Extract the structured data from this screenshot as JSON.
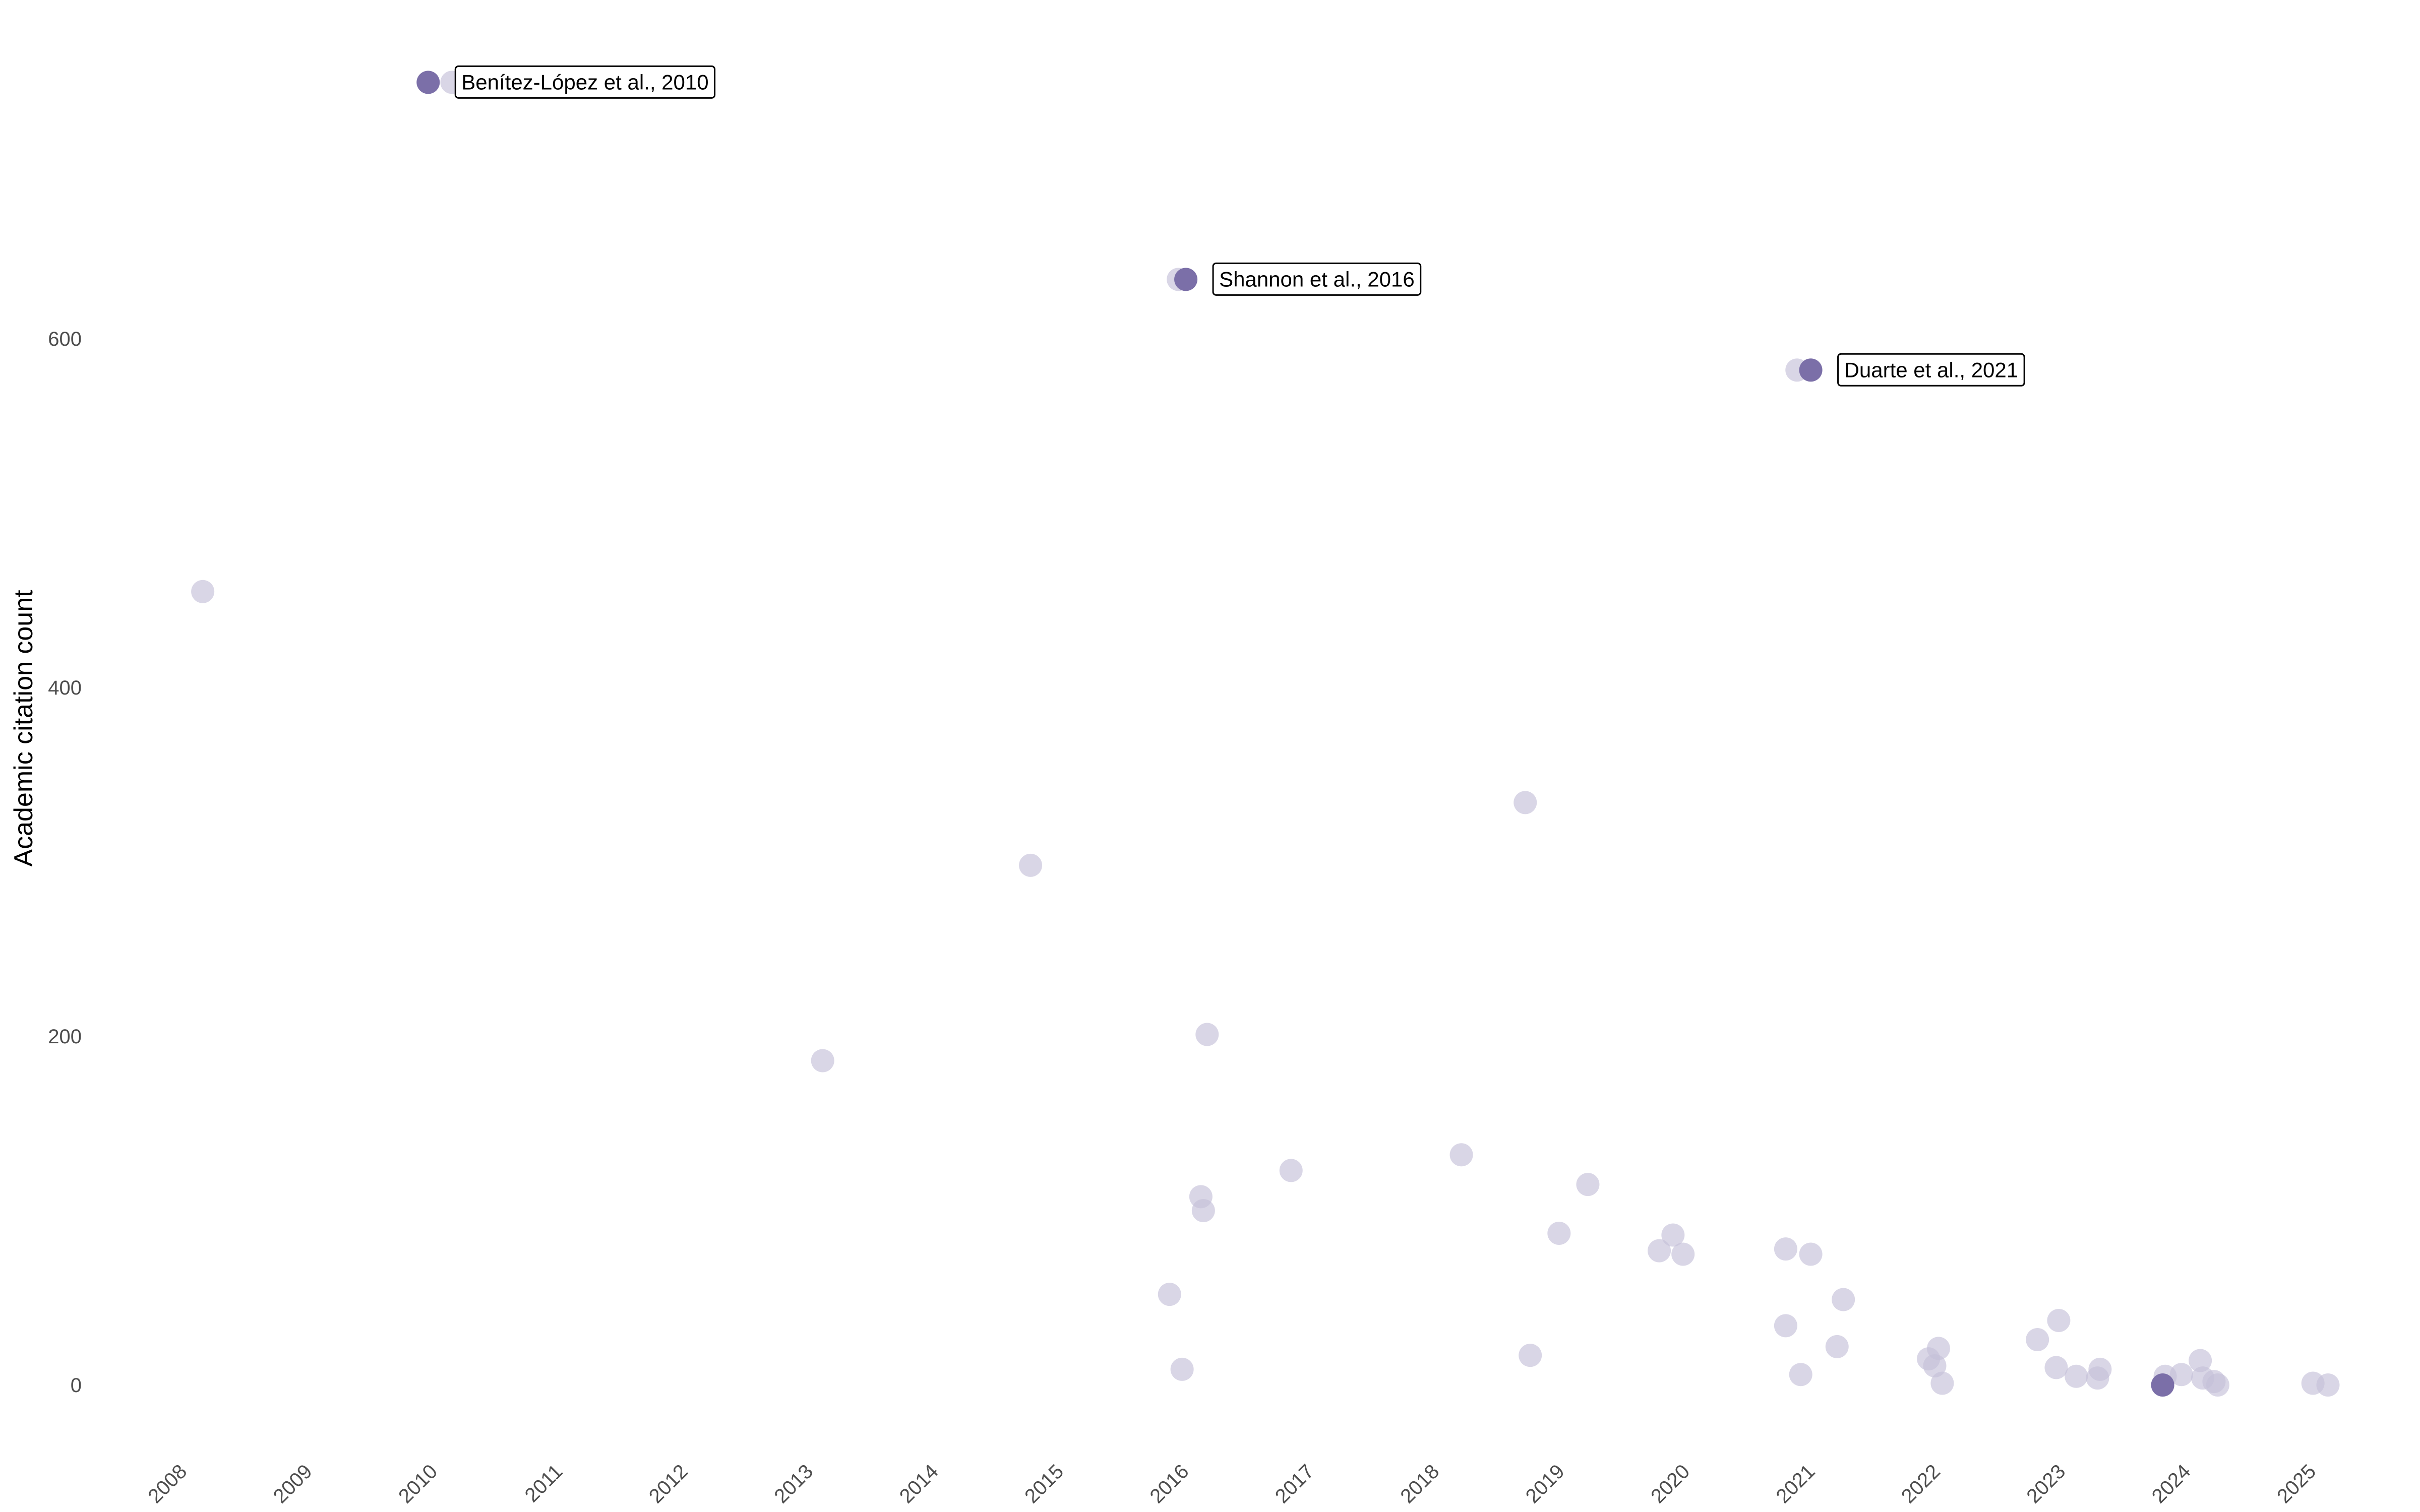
{
  "chart_data": {
    "type": "scatter",
    "title": "",
    "xlabel": "",
    "ylabel": "Academic citation count",
    "xlim": [
      2007.8,
      2025.4
    ],
    "ylim": [
      -40,
      760
    ],
    "x_ticks": [
      "2008",
      "2009",
      "2010",
      "2011",
      "2012",
      "2013",
      "2014",
      "2015",
      "2016",
      "2017",
      "2018",
      "2019",
      "2020",
      "2021",
      "2022",
      "2023",
      "2024",
      "2025"
    ],
    "y_ticks": [
      0,
      200,
      400,
      600
    ],
    "grid": false,
    "colors": {
      "point": "#7b6fa8",
      "point_faded": "#c4c0d8",
      "tick_text": "#4d4d4d"
    },
    "series": [
      {
        "points": [
          {
            "x": 2008.23,
            "y": 455
          },
          {
            "x": 2010.22,
            "y": 747
          },
          {
            "x": 2013.18,
            "y": 186
          },
          {
            "x": 2014.84,
            "y": 298
          },
          {
            "x": 2015.95,
            "y": 52
          },
          {
            "x": 2016.05,
            "y": 9
          },
          {
            "x": 2016.02,
            "y": 634
          },
          {
            "x": 2016.2,
            "y": 108
          },
          {
            "x": 2016.22,
            "y": 100
          },
          {
            "x": 2016.25,
            "y": 201
          },
          {
            "x": 2016.92,
            "y": 123
          },
          {
            "x": 2018.28,
            "y": 132
          },
          {
            "x": 2018.79,
            "y": 334
          },
          {
            "x": 2018.83,
            "y": 17
          },
          {
            "x": 2019.06,
            "y": 87
          },
          {
            "x": 2019.29,
            "y": 115
          },
          {
            "x": 2019.86,
            "y": 77
          },
          {
            "x": 2019.97,
            "y": 86
          },
          {
            "x": 2020.05,
            "y": 75
          },
          {
            "x": 2020.87,
            "y": 78
          },
          {
            "x": 2020.87,
            "y": 34
          },
          {
            "x": 2020.96,
            "y": 582
          },
          {
            "x": 2020.99,
            "y": 6
          },
          {
            "x": 2021.07,
            "y": 75
          },
          {
            "x": 2021.28,
            "y": 22
          },
          {
            "x": 2021.33,
            "y": 49
          },
          {
            "x": 2022.01,
            "y": 15
          },
          {
            "x": 2022.06,
            "y": 11
          },
          {
            "x": 2022.09,
            "y": 21
          },
          {
            "x": 2022.12,
            "y": 1
          },
          {
            "x": 2022.88,
            "y": 26
          },
          {
            "x": 2023.03,
            "y": 10
          },
          {
            "x": 2023.05,
            "y": 37
          },
          {
            "x": 2023.19,
            "y": 5
          },
          {
            "x": 2023.36,
            "y": 4
          },
          {
            "x": 2023.38,
            "y": 9
          },
          {
            "x": 2023.88,
            "y": 0
          },
          {
            "x": 2023.9,
            "y": 5
          },
          {
            "x": 2024.03,
            "y": 6
          },
          {
            "x": 2024.18,
            "y": 14
          },
          {
            "x": 2024.2,
            "y": 4
          },
          {
            "x": 2024.29,
            "y": 2
          },
          {
            "x": 2024.32,
            "y": 0
          },
          {
            "x": 2025.08,
            "y": 1
          },
          {
            "x": 2025.2,
            "y": 0
          }
        ]
      },
      {
        "points": [
          {
            "x": 2010.03,
            "y": 747
          },
          {
            "x": 2016.08,
            "y": 634
          },
          {
            "x": 2021.07,
            "y": 582
          },
          {
            "x": 2023.88,
            "y": 0
          }
        ]
      }
    ],
    "annotations": [
      {
        "label": "Benítez-López et al., 2010",
        "x": 2010.03,
        "y": 747
      },
      {
        "label": "Shannon et al., 2016",
        "x": 2016.08,
        "y": 634
      },
      {
        "label": "Duarte et al., 2021",
        "x": 2021.07,
        "y": 582
      }
    ]
  }
}
